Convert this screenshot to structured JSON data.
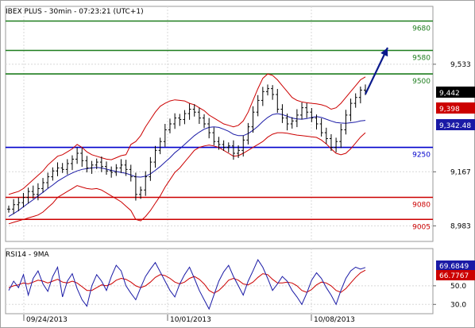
{
  "title": "IBEX PLUS - 30min - 07:23:21 (UTC+1)",
  "colors": {
    "price": "#000000",
    "bollinger": "#cc0000",
    "ma": "#1a1aa6",
    "resistance": "#1e7d1e",
    "support_blue": "#0000cc",
    "support_red": "#cc0000",
    "forecast_arrow": "#0a1a8c",
    "rsi_line": "#1a1aa6",
    "rsi_ma": "#cc0000",
    "grid": "#d8d8d8"
  },
  "chart_data": [
    {
      "type": "line",
      "subtype": "ohlc-bars",
      "title": "IBEX PLUS - 30min - 07:23:21 (UTC+1)",
      "ylim": [
        8930,
        9730
      ],
      "y_ticks": [
        "9,533",
        "9,167",
        "8,983"
      ],
      "y_tick_values": [
        9533,
        9167,
        8983
      ],
      "x_ticks": [
        "09/24/2013",
        "10/01/2013",
        "10/08/2013"
      ],
      "grid": true,
      "levels": [
        {
          "label": "9680",
          "value": 9680,
          "color": "#1e7d1e"
        },
        {
          "label": "9580",
          "value": 9580,
          "color": "#1e7d1e"
        },
        {
          "label": "9500",
          "value": 9500,
          "color": "#1e7d1e"
        },
        {
          "label": "9250",
          "value": 9250,
          "color": "#0000cc"
        },
        {
          "label": "9080",
          "value": 9080,
          "color": "#cc0000"
        },
        {
          "label": "9005",
          "value": 9005,
          "color": "#cc0000"
        }
      ],
      "badges": [
        {
          "label": "9,442",
          "value": 9442,
          "bg": "#000000"
        },
        {
          "label": "9,398",
          "value": 9398,
          "bg": "#cc0000"
        },
        {
          "label": "9,342.48",
          "value": 9342.48,
          "bg": "#1a1aa6"
        }
      ],
      "series": [
        {
          "role": "close",
          "values": [
            9040,
            9055,
            9062,
            9080,
            9100,
            9090,
            9110,
            9130,
            9150,
            9170,
            9180,
            9175,
            9195,
            9210,
            9230,
            9205,
            9180,
            9190,
            9200,
            9185,
            9170,
            9165,
            9180,
            9190,
            9175,
            9150,
            9090,
            9105,
            9150,
            9200,
            9240,
            9270,
            9310,
            9330,
            9350,
            9345,
            9365,
            9380,
            9370,
            9350,
            9330,
            9300,
            9270,
            9260,
            9250,
            9255,
            9230,
            9240,
            9275,
            9320,
            9370,
            9410,
            9440,
            9450,
            9430,
            9380,
            9350,
            9330,
            9340,
            9360,
            9385,
            9370,
            9350,
            9330,
            9300,
            9280,
            9250,
            9270,
            9310,
            9360,
            9400,
            9420,
            9445,
            9442
          ]
        },
        {
          "role": "ma",
          "values": [
            9015,
            9025,
            9035,
            9048,
            9060,
            9072,
            9085,
            9097,
            9110,
            9122,
            9135,
            9145,
            9155,
            9163,
            9170,
            9175,
            9178,
            9180,
            9182,
            9180,
            9176,
            9172,
            9168,
            9165,
            9162,
            9156,
            9150,
            9149,
            9152,
            9160,
            9172,
            9185,
            9200,
            9215,
            9232,
            9245,
            9260,
            9275,
            9290,
            9302,
            9312,
            9318,
            9320,
            9318,
            9312,
            9305,
            9295,
            9290,
            9290,
            9297,
            9308,
            9322,
            9338,
            9352,
            9362,
            9365,
            9362,
            9356,
            9350,
            9347,
            9346,
            9348,
            9352,
            9355,
            9352,
            9346,
            9340,
            9335,
            9333,
            9332,
            9334,
            9336,
            9340,
            9342
          ]
        },
        {
          "role": "bollinger_upper",
          "values": [
            9090,
            9095,
            9100,
            9110,
            9125,
            9140,
            9155,
            9170,
            9190,
            9205,
            9220,
            9225,
            9235,
            9245,
            9260,
            9250,
            9235,
            9225,
            9220,
            9215,
            9210,
            9208,
            9215,
            9222,
            9225,
            9260,
            9270,
            9290,
            9320,
            9345,
            9370,
            9390,
            9400,
            9408,
            9412,
            9410,
            9408,
            9400,
            9395,
            9385,
            9375,
            9360,
            9350,
            9340,
            9330,
            9325,
            9320,
            9325,
            9340,
            9370,
            9410,
            9450,
            9485,
            9500,
            9495,
            9480,
            9460,
            9440,
            9420,
            9410,
            9405,
            9402,
            9400,
            9398,
            9395,
            9390,
            9380,
            9385,
            9400,
            9420,
            9440,
            9460,
            9480,
            9490
          ]
        },
        {
          "role": "bollinger_lower",
          "values": [
            8990,
            8995,
            9000,
            9005,
            9010,
            9015,
            9020,
            9030,
            9045,
            9060,
            9080,
            9090,
            9100,
            9110,
            9120,
            9115,
            9110,
            9108,
            9110,
            9105,
            9095,
            9085,
            9075,
            9065,
            9050,
            9035,
            9005,
            9000,
            9015,
            9035,
            9060,
            9085,
            9115,
            9140,
            9165,
            9180,
            9200,
            9220,
            9240,
            9250,
            9255,
            9258,
            9255,
            9250,
            9240,
            9230,
            9220,
            9222,
            9230,
            9240,
            9250,
            9260,
            9270,
            9285,
            9295,
            9300,
            9300,
            9298,
            9295,
            9292,
            9290,
            9288,
            9286,
            9284,
            9275,
            9262,
            9245,
            9230,
            9225,
            9230,
            9245,
            9265,
            9285,
            9300
          ]
        }
      ]
    },
    {
      "type": "line",
      "title": "RSI14 - 9MA",
      "ylim": [
        20,
        90
      ],
      "y_ticks": [
        "50.0",
        "30.0"
      ],
      "y_tick_values": [
        50,
        30
      ],
      "badges": [
        {
          "label": "69.6849",
          "value": 69.6849,
          "bg": "#1a1aa6"
        },
        {
          "label": "66.7767",
          "value": 66.7767,
          "bg": "#cc0000"
        }
      ],
      "series": [
        {
          "role": "rsi",
          "values": [
            45,
            55,
            48,
            62,
            40,
            58,
            66,
            52,
            44,
            60,
            70,
            38,
            55,
            63,
            47,
            35,
            28,
            50,
            62,
            55,
            45,
            60,
            72,
            66,
            50,
            42,
            35,
            48,
            60,
            68,
            75,
            65,
            55,
            45,
            38,
            52,
            62,
            70,
            58,
            45,
            35,
            25,
            40,
            55,
            65,
            72,
            60,
            50,
            40,
            55,
            66,
            78,
            70,
            58,
            45,
            52,
            60,
            55,
            45,
            38,
            30,
            42,
            56,
            64,
            58,
            48,
            40,
            30,
            45,
            58,
            66,
            70,
            68,
            69.7
          ]
        },
        {
          "role": "ma",
          "values": [
            48,
            50,
            51,
            53,
            52,
            54,
            56,
            55,
            53,
            55,
            57,
            54,
            53,
            55,
            53,
            49,
            45,
            45,
            48,
            51,
            50,
            52,
            56,
            58,
            57,
            54,
            50,
            48,
            50,
            54,
            59,
            62,
            61,
            58,
            54,
            52,
            54,
            58,
            60,
            57,
            52,
            45,
            42,
            45,
            50,
            56,
            58,
            56,
            52,
            51,
            54,
            59,
            63,
            62,
            57,
            53,
            53,
            54,
            53,
            50,
            45,
            43,
            46,
            51,
            54,
            53,
            50,
            45,
            43,
            47,
            53,
            59,
            64,
            66.8
          ]
        }
      ]
    }
  ]
}
